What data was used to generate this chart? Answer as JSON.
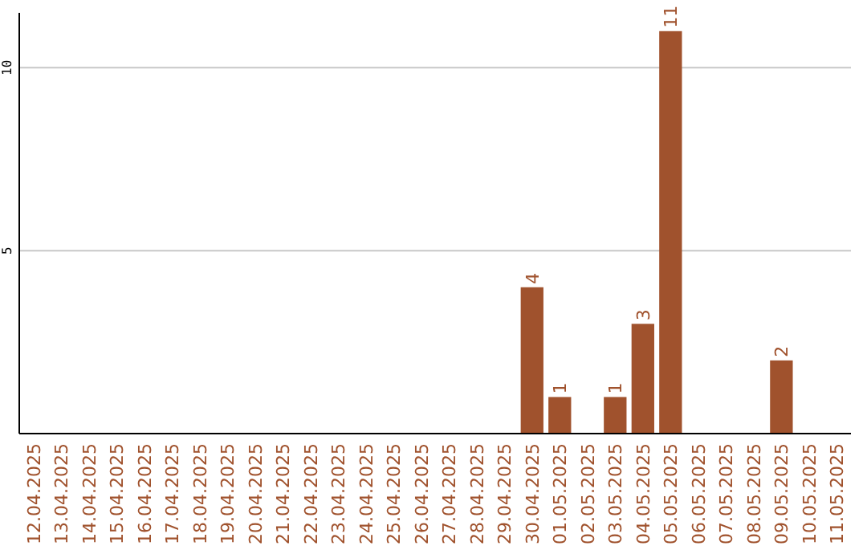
{
  "chart_data": {
    "type": "bar",
    "categories": [
      "12.04.2025",
      "13.04.2025",
      "14.04.2025",
      "15.04.2025",
      "16.04.2025",
      "17.04.2025",
      "18.04.2025",
      "19.04.2025",
      "20.04.2025",
      "21.04.2025",
      "22.04.2025",
      "23.04.2025",
      "24.04.2025",
      "25.04.2025",
      "26.04.2025",
      "27.04.2025",
      "28.04.2025",
      "29.04.2025",
      "30.04.2025",
      "01.05.2025",
      "02.05.2025",
      "03.05.2025",
      "04.05.2025",
      "05.05.2025",
      "06.05.2025",
      "07.05.2025",
      "08.05.2025",
      "09.05.2025",
      "10.05.2025",
      "11.05.2025"
    ],
    "values": [
      0,
      0,
      0,
      0,
      0,
      0,
      0,
      0,
      0,
      0,
      0,
      0,
      0,
      0,
      0,
      0,
      0,
      0,
      4,
      1,
      0,
      1,
      3,
      11,
      0,
      0,
      0,
      2,
      0,
      0
    ],
    "value_labels": [
      null,
      null,
      null,
      null,
      null,
      null,
      null,
      null,
      null,
      null,
      null,
      null,
      null,
      null,
      null,
      null,
      null,
      null,
      "4",
      "1",
      null,
      "1",
      "3",
      "11",
      null,
      null,
      null,
      "2",
      null,
      null
    ],
    "color": "#a0522d",
    "ylim": [
      0,
      11.5
    ],
    "yticks": [
      5,
      10
    ],
    "grid": "y"
  }
}
